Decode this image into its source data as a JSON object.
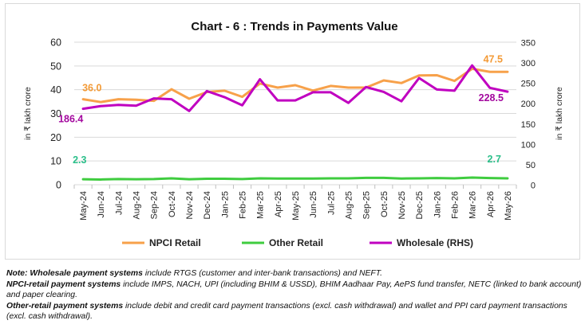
{
  "chart_data": {
    "type": "line",
    "title": "Chart - 6 : Trends in Payments Value",
    "categories": [
      "May-24",
      "Jun-24",
      "Jul-24",
      "Aug-24",
      "Sep-24",
      "Oct-24",
      "Nov-24",
      "Dec-24",
      "Jan-25",
      "Feb-25",
      "Mar-25",
      "Apr-25",
      "May-25",
      "Jun-25",
      "Jul-25",
      "Aug-25",
      "Sep-25",
      "Oct-25",
      "Nov-25",
      "Dec-25",
      "Jan-26",
      "Feb-26",
      "Mar-26",
      "Apr-26",
      "May-26"
    ],
    "tick_labels": [
      "May-24",
      "Jun-24",
      "Jul-24",
      "Aug-24",
      "Sep-24",
      "Oct-24",
      "Nov-24",
      "Dec-24",
      "Jan-25",
      "Feb-25",
      "Mar-25",
      "Apr-25",
      "May-25",
      "Jun-25",
      "Jul-25",
      "Aug-25",
      "Sep-25",
      "Oct-25",
      "Nov-25",
      "Dec-25",
      "Jan-26",
      "Feb-26",
      "Mar-26",
      "Apr-26",
      "May-26"
    ],
    "ylabel": "in ₹ lakh crore",
    "y2label": "in ₹ lakh crore",
    "ylim": [
      0,
      60
    ],
    "y_ticks": [
      0,
      10,
      20,
      30,
      40,
      50,
      60
    ],
    "y2lim": [
      0,
      350
    ],
    "y2_ticks": [
      0,
      50,
      100,
      150,
      200,
      250,
      300,
      350
    ],
    "grid": true,
    "legend_position": "bottom",
    "series": [
      {
        "name": "NPCI Retail",
        "axis": "left",
        "color": "#f7a14a",
        "values": [
          36.0,
          34.8,
          36.0,
          35.8,
          35.3,
          40.2,
          36.2,
          39.0,
          39.6,
          37.0,
          42.6,
          40.9,
          41.9,
          39.6,
          41.6,
          40.9,
          40.9,
          43.9,
          42.8,
          46.0,
          46.1,
          43.7,
          48.8,
          47.5,
          47.5
        ]
      },
      {
        "name": "Other Retail",
        "axis": "left",
        "color": "#3fcc3f",
        "values": [
          2.3,
          2.2,
          2.4,
          2.3,
          2.4,
          2.7,
          2.3,
          2.5,
          2.5,
          2.4,
          2.7,
          2.6,
          2.6,
          2.6,
          2.7,
          2.7,
          2.9,
          2.9,
          2.6,
          2.7,
          2.8,
          2.7,
          3.0,
          2.8,
          2.7
        ]
      },
      {
        "name": "Wholesale (RHS)",
        "axis": "right",
        "color": "#c000c0",
        "values": [
          186.4,
          193.0,
          196.0,
          194.0,
          212.0,
          210.0,
          181.0,
          230.0,
          215.0,
          195.0,
          259.0,
          207.0,
          207.0,
          227.0,
          227.0,
          201.0,
          240.0,
          228.0,
          205.0,
          262.0,
          234.0,
          231.0,
          293.0,
          238.0,
          228.5
        ]
      }
    ],
    "data_labels": [
      {
        "series": 0,
        "index": 0,
        "text": "36.0"
      },
      {
        "series": 0,
        "index": 24,
        "text": "47.5"
      },
      {
        "series": 1,
        "index": 0,
        "text": "2.3"
      },
      {
        "series": 1,
        "index": 24,
        "text": "2.7"
      },
      {
        "series": 2,
        "index": 0,
        "text": "186.4"
      },
      {
        "series": 2,
        "index": 24,
        "text": "228.5"
      }
    ]
  },
  "notes": [
    {
      "lead": "Note: Wholesale payment systems",
      "text": " include RTGS (customer and inter-bank transactions) and NEFT."
    },
    {
      "lead": "NPCI-retail payment systems",
      "text": " include IMPS, NACH, UPI (including BHIM & USSD), BHIM Aadhaar Pay, AePS fund transfer, NETC (linked to bank account) and paper clearing."
    },
    {
      "lead": "Other-retail payment systems",
      "text": " include debit and credit card payment transactions (excl. cash withdrawal) and wallet and PPI card payment transactions (excl. cash withdrawal)."
    }
  ]
}
